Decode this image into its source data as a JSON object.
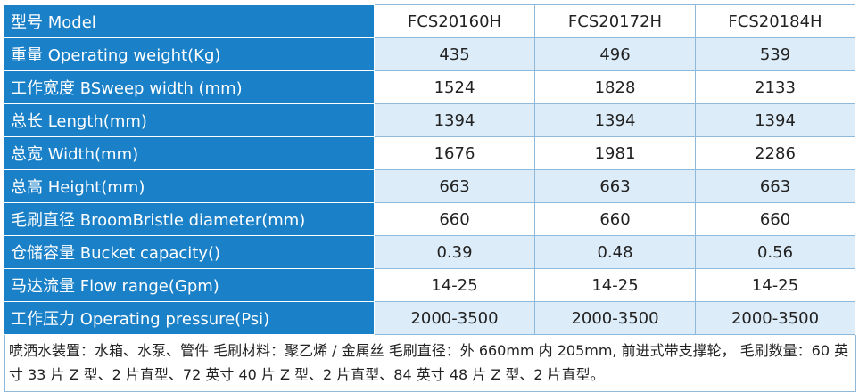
{
  "table": {
    "header": [
      "型号 Model",
      "FCS20160H",
      "FCS20172H",
      "FCS20184H"
    ],
    "rows": [
      [
        "重量 Operating weight(Kg)",
        "435",
        "496",
        "539"
      ],
      [
        "工作宽度 BSweep width (mm)",
        "1524",
        "1828",
        "2133"
      ],
      [
        "总长 Length(mm)",
        "1394",
        "1394",
        "1394"
      ],
      [
        "总宽 Width(mm)",
        "1676",
        "1981",
        "2286"
      ],
      [
        "总高 Height(mm)",
        "663",
        "663",
        "663"
      ],
      [
        "毛刷直径 BroomBristle diameter(mm)",
        "660",
        "660",
        "660"
      ],
      [
        "仓储容量 Bucket capacity()",
        "0.39",
        "0.48",
        "0.56"
      ],
      [
        "马达流量 Flow range(Gpm)",
        "14-25",
        "14-25",
        "14-25"
      ],
      [
        "工作压力 Operating pressure(Psi)",
        "2000-3500",
        "2000-3500",
        "2000-3500"
      ]
    ],
    "note": "喷洒水装置：水箱、水泵、管件 毛刷材料：聚乙烯 / 金属丝  毛刷直径：外 660mm 内 205mm, 前进式带支撑轮， 毛刷数量：60 英寸 33 片 Z 型、2 片直型、72 英寸 40 片 Z 型、2 片直型、84 英寸 48 片 Z 型、2 片直型。"
  }
}
